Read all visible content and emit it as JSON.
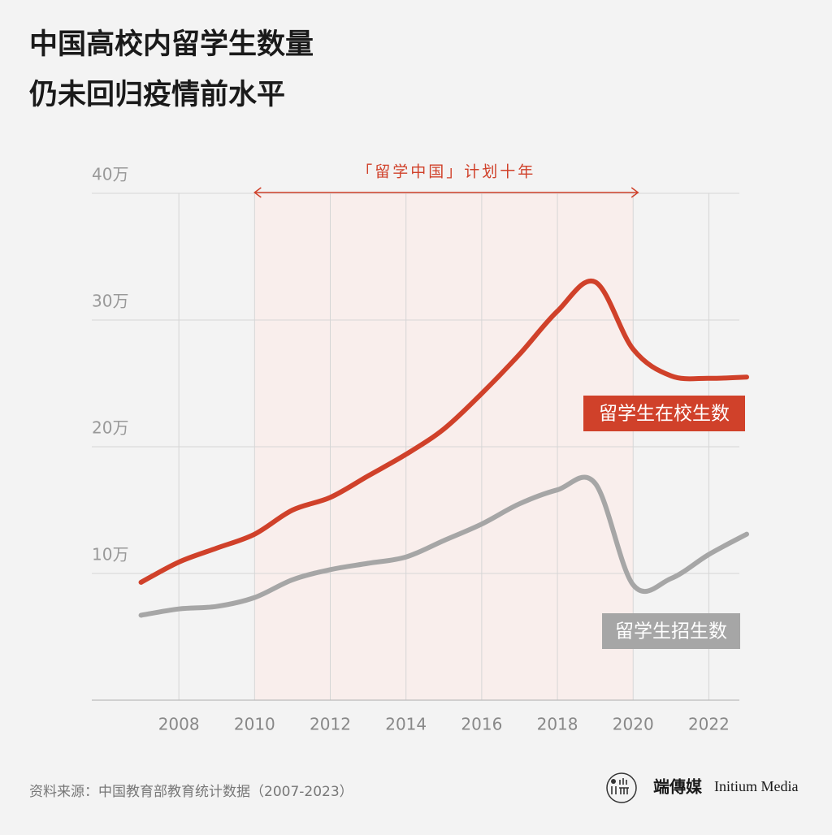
{
  "chart_data": {
    "type": "line",
    "title_lines": [
      "中国高校内留学生数量",
      "仍未回归疫情前水平"
    ],
    "x": [
      2007,
      2008,
      2009,
      2010,
      2011,
      2012,
      2013,
      2014,
      2015,
      2016,
      2017,
      2018,
      2019,
      2020,
      2021,
      2022,
      2023
    ],
    "series": [
      {
        "name": "留学生在校生数",
        "color": "#d0412a",
        "values": [
          9.3,
          10.9,
          12.0,
          13.1,
          15.0,
          16.0,
          17.7,
          19.4,
          21.4,
          24.2,
          27.3,
          30.7,
          33.0,
          27.7,
          25.6,
          25.4,
          25.5
        ]
      },
      {
        "name": "留学生招生数",
        "color": "#a6a6a6",
        "values": [
          6.7,
          7.2,
          7.4,
          8.1,
          9.5,
          10.3,
          10.8,
          11.3,
          12.6,
          13.9,
          15.5,
          16.6,
          17.1,
          9.1,
          9.6,
          11.5,
          13.1
        ]
      }
    ],
    "xlim": [
      2005.7,
      2023
    ],
    "xticks": [
      2008,
      2010,
      2012,
      2014,
      2016,
      2018,
      2020,
      2022
    ],
    "ylim": [
      0,
      40
    ],
    "yticks": [
      {
        "value": 10,
        "label": "10万"
      },
      {
        "value": 20,
        "label": "20万"
      },
      {
        "value": 30,
        "label": "30万"
      },
      {
        "value": 40,
        "label": "40万"
      }
    ],
    "grid": true,
    "highlight": {
      "start": 2010,
      "end": 2020,
      "label": "「留学中国」计划十年",
      "color": "#d0412a"
    },
    "source": "资料来源：中国教育部教育统计数据（2007-2023）",
    "brand": {
      "cn": "端傳媒",
      "en": "Initium Media"
    }
  }
}
